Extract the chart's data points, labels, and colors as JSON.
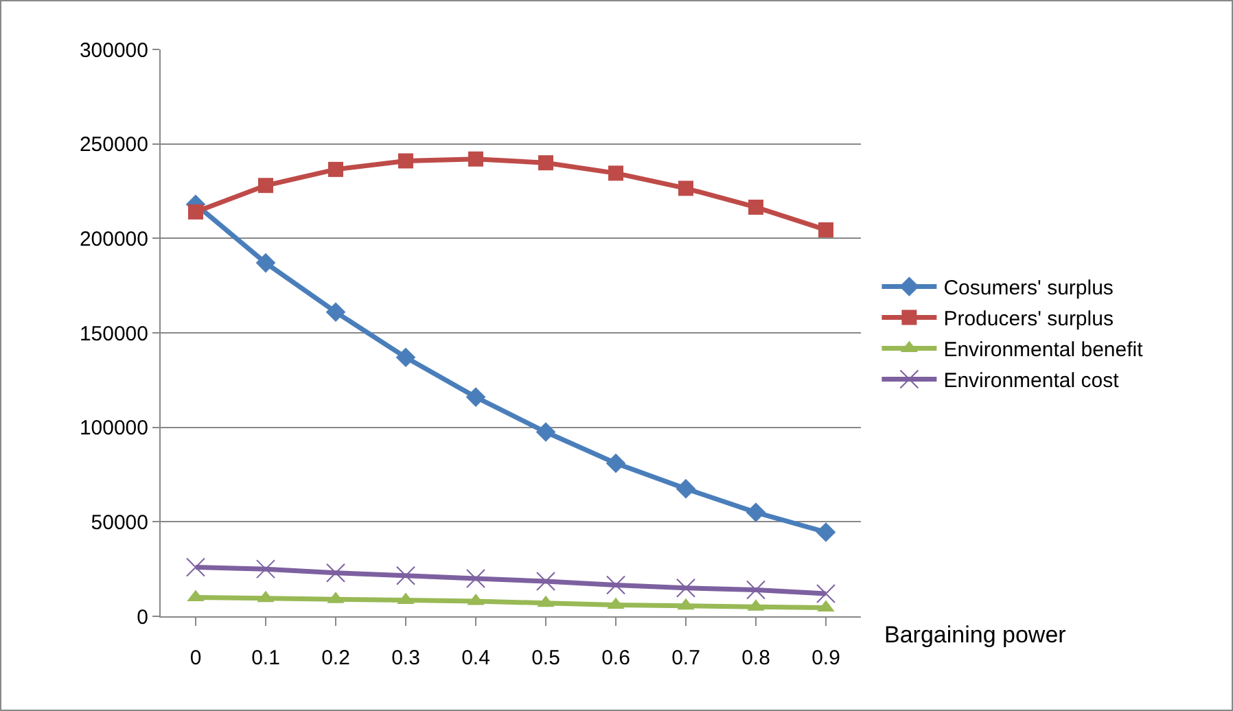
{
  "chart_data": {
    "type": "line",
    "xlabel": "Bargaining power",
    "categories": [
      "0",
      "0.1",
      "0.2",
      "0.3",
      "0.4",
      "0.5",
      "0.6",
      "0.7",
      "0.8",
      "0.9"
    ],
    "series": [
      {
        "name": "Cosumers' surplus",
        "color": "#4a7ebb",
        "marker": "diamond",
        "values": [
          218000,
          187000,
          161000,
          137000,
          116000,
          97500,
          81000,
          67500,
          55000,
          44500
        ]
      },
      {
        "name": "Producers' surplus",
        "color": "#be4b48",
        "marker": "square",
        "values": [
          214000,
          228000,
          236500,
          241000,
          242000,
          240000,
          234500,
          226500,
          216500,
          204500
        ]
      },
      {
        "name": "Environmental benefit",
        "color": "#98b954",
        "marker": "triangle",
        "values": [
          10000,
          9500,
          9000,
          8500,
          8000,
          7000,
          6000,
          5500,
          5000,
          4500
        ]
      },
      {
        "name": "Environmental cost",
        "color": "#7d60a0",
        "marker": "cross",
        "values": [
          26000,
          25000,
          23000,
          21500,
          20000,
          18500,
          16500,
          15000,
          14000,
          12000
        ]
      }
    ],
    "ylim": [
      0,
      300000
    ],
    "yticks": [
      0,
      50000,
      100000,
      150000,
      200000,
      250000,
      300000
    ],
    "grid": "y",
    "legend": "right"
  }
}
